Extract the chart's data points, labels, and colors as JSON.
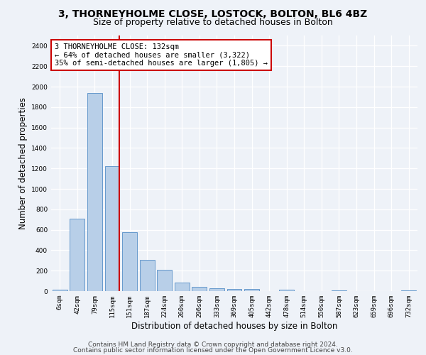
{
  "title": "3, THORNEYHOLME CLOSE, LOSTOCK, BOLTON, BL6 4BZ",
  "subtitle": "Size of property relative to detached houses in Bolton",
  "xlabel": "Distribution of detached houses by size in Bolton",
  "ylabel": "Number of detached properties",
  "categories": [
    "6sqm",
    "42sqm",
    "79sqm",
    "115sqm",
    "151sqm",
    "187sqm",
    "224sqm",
    "260sqm",
    "296sqm",
    "333sqm",
    "369sqm",
    "405sqm",
    "442sqm",
    "478sqm",
    "514sqm",
    "550sqm",
    "587sqm",
    "623sqm",
    "659sqm",
    "696sqm",
    "732sqm"
  ],
  "values": [
    15,
    705,
    1940,
    1225,
    575,
    305,
    205,
    80,
    40,
    25,
    20,
    20,
    0,
    15,
    0,
    0,
    10,
    0,
    0,
    0,
    5
  ],
  "bar_color": "#b8cfe8",
  "bar_edge_color": "#6699cc",
  "vline_x_index": 3,
  "vline_color": "#cc0000",
  "annotation_text": "3 THORNEYHOLME CLOSE: 132sqm\n← 64% of detached houses are smaller (3,322)\n35% of semi-detached houses are larger (1,805) →",
  "annotation_box_facecolor": "#ffffff",
  "annotation_box_edgecolor": "#cc0000",
  "ylim_max": 2500,
  "yticks": [
    0,
    200,
    400,
    600,
    800,
    1000,
    1200,
    1400,
    1600,
    1800,
    2000,
    2200,
    2400
  ],
  "footnote_line1": "Contains HM Land Registry data © Crown copyright and database right 2024.",
  "footnote_line2": "Contains public sector information licensed under the Open Government Licence v3.0.",
  "background_color": "#eef2f8",
  "grid_color": "#ffffff",
  "title_fontsize": 10,
  "subtitle_fontsize": 9,
  "axis_label_fontsize": 8.5,
  "tick_fontsize": 6.5,
  "annotation_fontsize": 7.5,
  "footnote_fontsize": 6.5
}
